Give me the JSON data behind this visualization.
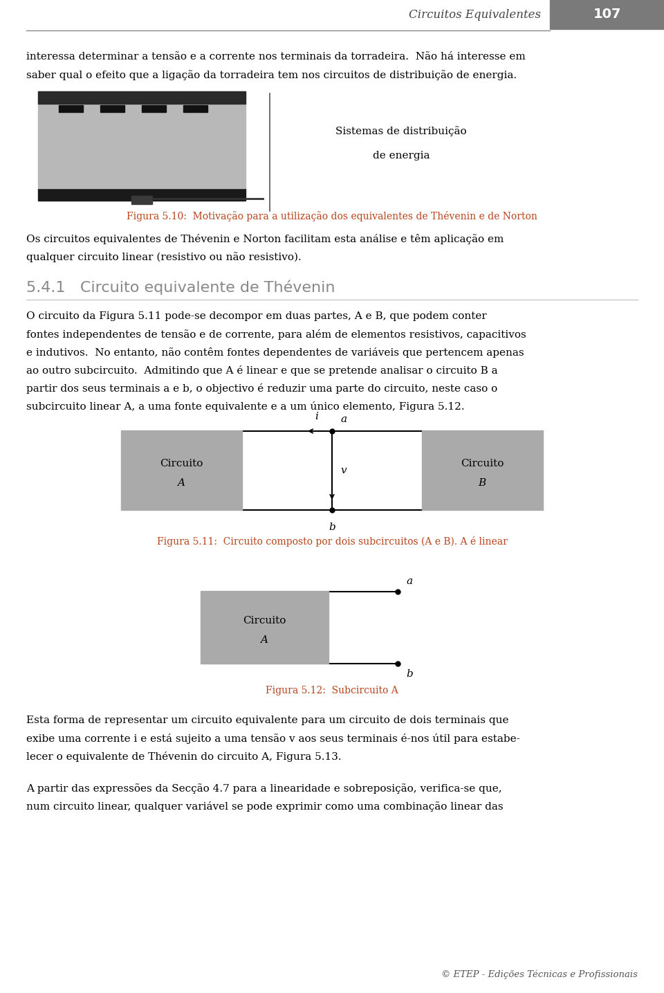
{
  "page_number": "107",
  "header_title": "Circuitos Equivalentes",
  "bg_color": "#ffffff",
  "figure_caption_color": "#b8431a",
  "text_block_1_l1": "interessa determinar a tensão e a corrente nos terminais da torradeira.  Não há interesse em",
  "text_block_1_l2": "saber qual o efeito que a ligação da torradeira tem nos circuitos de distribuição de energia.",
  "fig510_side_text_line1": "Sistemas de distribuição",
  "fig510_side_text_line2": "de energia",
  "fig510_caption": "Figura 5.10:  Motivação para a utilização dos equivalentes de Thévenin e de Norton",
  "text_block_2_l1": "Os circuitos equivalentes de Thévenin e Norton facilitam esta análise e têm aplicação em",
  "text_block_2_l2": "qualquer circuito linear (resistivo ou não resistivo).",
  "section_title": "5.4.1   Circuito equivalente de Thévenin",
  "text_block_3_l1": "O circuito da Figura 5.11 pode-se decompor em duas partes, A e B, que podem conter",
  "text_block_3_l2": "fontes independentes de tensão e de corrente, para além de elementos resistivos, capacitivos",
  "text_block_3_l3": "e indutivos.  No entanto, não contêm fontes dependentes de variáveis que pertencem apenas",
  "text_block_3_l4": "ao outro subcircuito.  Admitindo que A é linear e que se pretende analisar o circuito B a",
  "text_block_3_l5": "partir dos seus terminais a e b, o objectivo é reduzir uma parte do circuito, neste caso o",
  "text_block_3_l6": "subcircuito linear A, a uma fonte equivalente e a um único elemento, Figura 5.12.",
  "fig511_caption": "Figura 5.11:  Circuito composto por dois subcircuitos (A e B). A é linear",
  "fig512_caption": "Figura 5.12:  Subcircuito A",
  "text_block_4_l1": "Esta forma de representar um circuito equivalente para um circuito de dois terminais que",
  "text_block_4_l2": "exibe uma corrente i e está sujeito a uma tensão v aos seus terminais é-nos útil para estabe-",
  "text_block_4_l3": "lecer o equivalente de Thévenin do circuito A, Figura 5.13.",
  "text_block_5_l1": "A partir das expressões da Secção 4.7 para a linearidade e sobreposição, verifica-se que,",
  "text_block_5_l2": "num circuito linear, qualquer variável se pode exprimir como uma combinação linear das",
  "footer_text": "© ETEP - Edições Técnicas e Profissionais"
}
